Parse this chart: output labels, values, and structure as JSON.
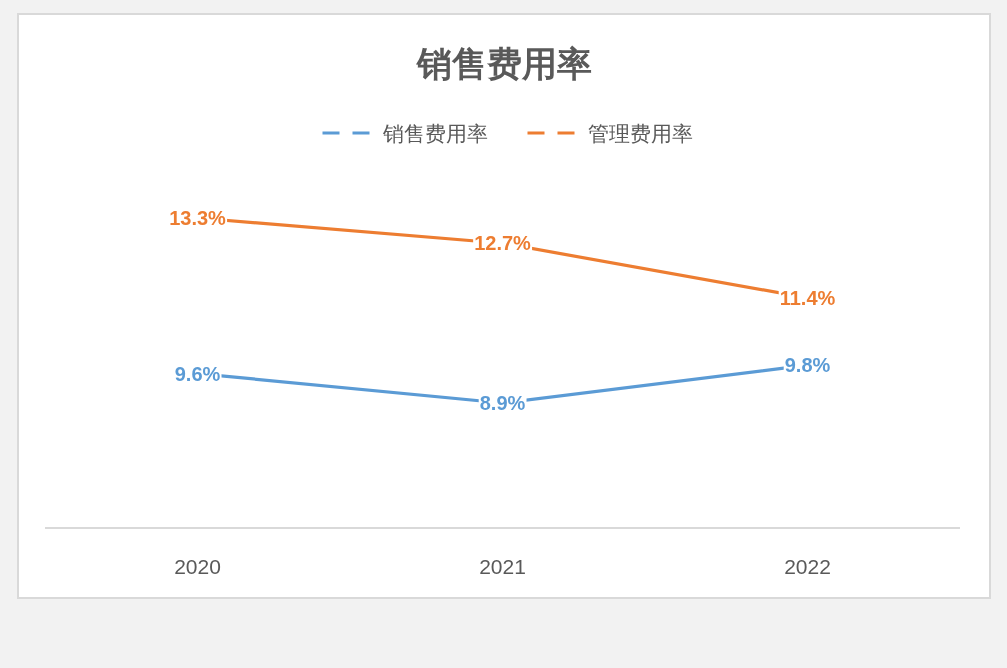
{
  "chart_data": {
    "type": "line",
    "title": "销售费用率",
    "categories": [
      "2020",
      "2021",
      "2022"
    ],
    "series": [
      {
        "name": "销售费用率",
        "color": "#5b9bd5",
        "values": [
          9.6,
          8.9,
          9.8
        ],
        "value_labels": [
          "9.6%",
          "8.9%",
          "9.8%"
        ]
      },
      {
        "name": "管理费用率",
        "color": "#ed7d31",
        "values": [
          13.3,
          12.7,
          11.4
        ],
        "value_labels": [
          "13.3%",
          "12.7%",
          "11.4%"
        ]
      }
    ],
    "tick_labels": "x",
    "legend": "top"
  }
}
